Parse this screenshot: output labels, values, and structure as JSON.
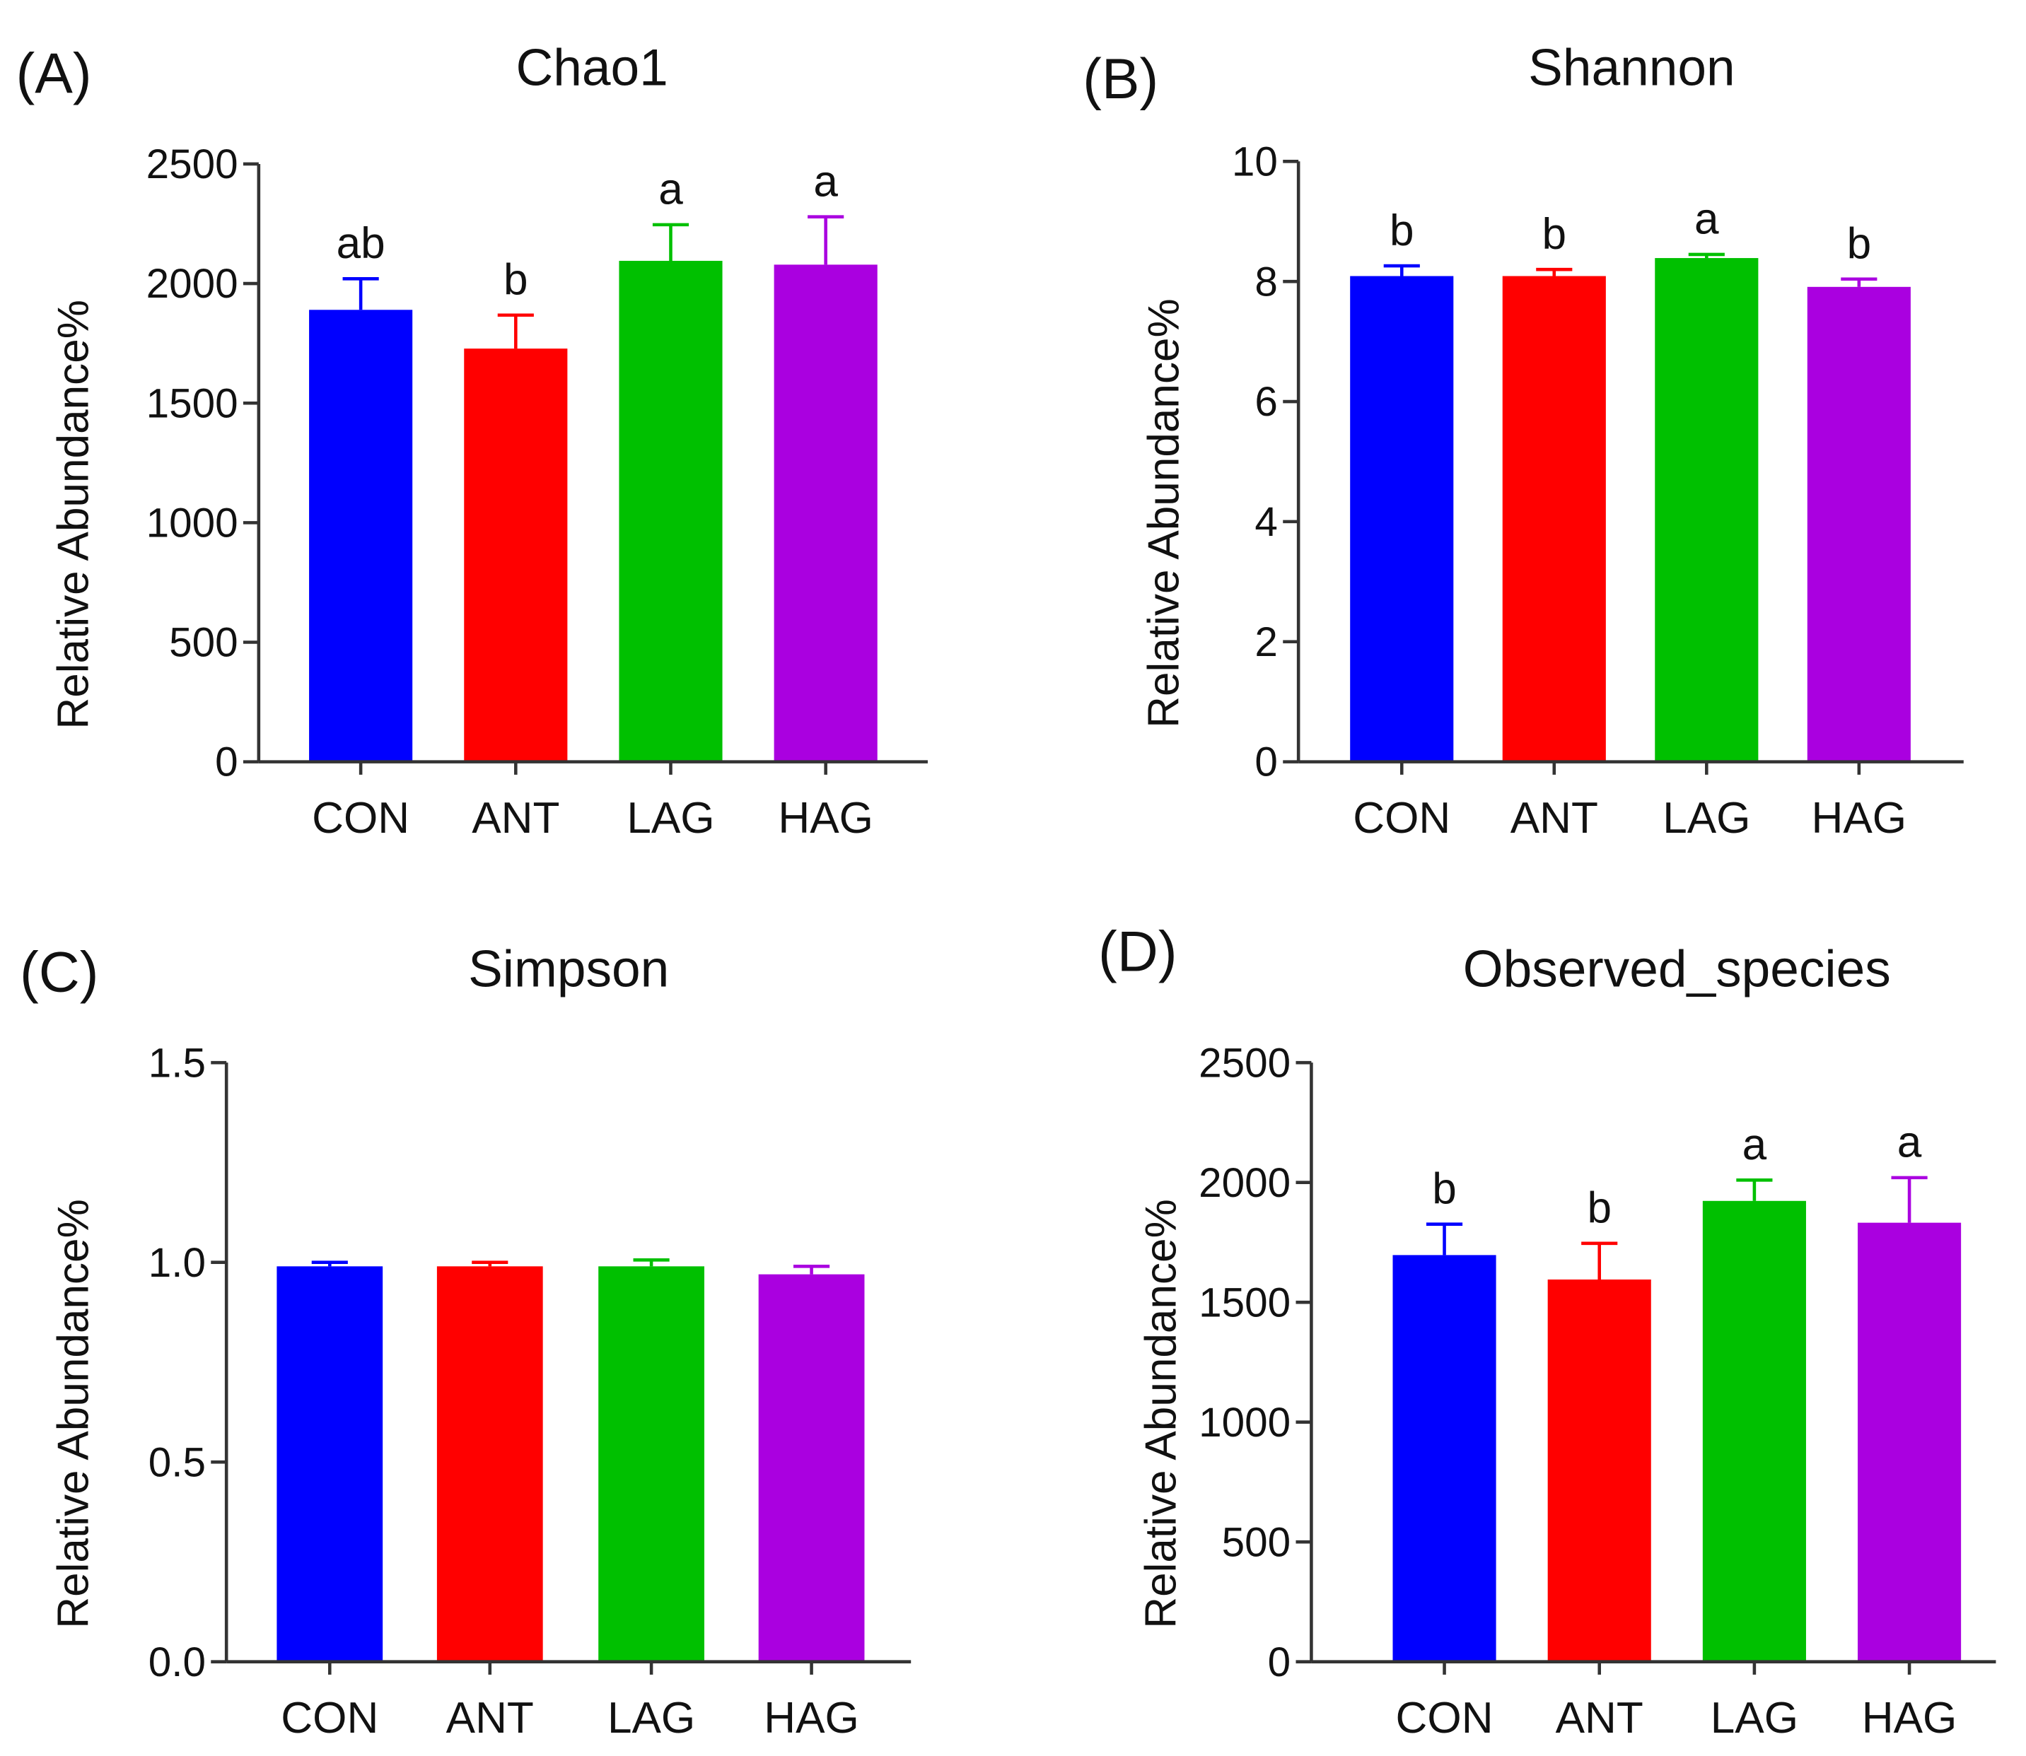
{
  "colors": {
    "CON": "#0000ff",
    "ANT": "#ff0000",
    "LAG": "#00c000",
    "HAG": "#aa00e0"
  },
  "chart_data": [
    {
      "type": "bar",
      "panel": "(A)",
      "title": "Chao1",
      "ylabel": "Relative Abundance%",
      "xlabel": "",
      "categories": [
        "CON",
        "ANT",
        "LAG",
        "HAG"
      ],
      "values": [
        1890,
        1728,
        2095,
        2079
      ],
      "error_upper": [
        2020,
        1868,
        2246,
        2279
      ],
      "significance": [
        "ab",
        "b",
        "a",
        "a"
      ],
      "ylim": [
        0,
        2500
      ],
      "yticks": [
        0,
        500,
        1000,
        1500,
        2000,
        2500
      ],
      "ytick_labels": [
        "0",
        "500",
        "1000",
        "1500",
        "2000",
        "2500"
      ],
      "grid": false
    },
    {
      "type": "bar",
      "panel": "(B)",
      "title": "Shannon",
      "ylabel": "Relative Abundance%",
      "xlabel": "",
      "categories": [
        "CON",
        "ANT",
        "LAG",
        "HAG"
      ],
      "values": [
        8.09,
        8.09,
        8.39,
        7.91
      ],
      "error_upper": [
        8.26,
        8.2,
        8.45,
        8.04
      ],
      "significance": [
        "b",
        "b",
        "a",
        "b"
      ],
      "ylim": [
        0,
        10
      ],
      "yticks": [
        0,
        2,
        4,
        6,
        8,
        10
      ],
      "ytick_labels": [
        "0",
        "2",
        "4",
        "6",
        "8",
        "10"
      ],
      "grid": false
    },
    {
      "type": "bar",
      "panel": "(C)",
      "title": "Simpson",
      "ylabel": "Relative Abundance%",
      "xlabel": "",
      "categories": [
        "CON",
        "ANT",
        "LAG",
        "HAG"
      ],
      "values": [
        0.99,
        0.99,
        0.99,
        0.97
      ],
      "error_upper": [
        1.0,
        1.0,
        1.006,
        0.99
      ],
      "significance": [
        "",
        "",
        "",
        ""
      ],
      "ylim": [
        0,
        1.5
      ],
      "yticks": [
        0,
        0.5,
        1.0,
        1.5
      ],
      "ytick_labels": [
        "0.0",
        "0.5",
        "1.0",
        "1.5"
      ],
      "grid": false
    },
    {
      "type": "bar",
      "panel": "(D)",
      "title": "Observed_species",
      "ylabel": "Relative Abundance%",
      "xlabel": "",
      "categories": [
        "CON",
        "ANT",
        "LAG",
        "HAG"
      ],
      "values": [
        1697,
        1595,
        1923,
        1832
      ],
      "error_upper": [
        1826,
        1746,
        2010,
        2020
      ],
      "significance": [
        "b",
        "b",
        "a",
        "a"
      ],
      "ylim": [
        0,
        2500
      ],
      "yticks": [
        0,
        500,
        1000,
        1500,
        2000,
        2500
      ],
      "ytick_labels": [
        "0",
        "500",
        "1000",
        "1500",
        "2000",
        "2500"
      ],
      "grid": false
    }
  ]
}
